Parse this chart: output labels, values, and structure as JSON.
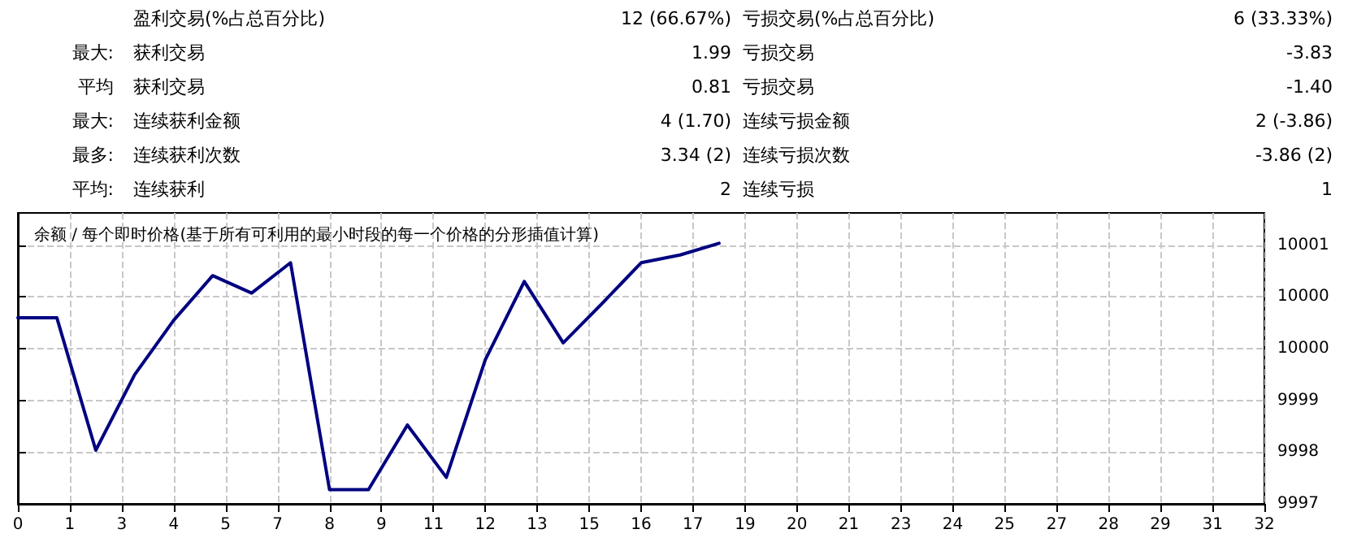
{
  "chart_data": [
    {
      "type": "other",
      "annotations": [
        null,
        "盈利交易(%占总百分比)",
        "12 (66.67%)",
        "亏损交易(%占总百分比)",
        "6 (33.33%)",
        "最大:",
        "获利交易",
        "1.99",
        "亏损交易",
        "-3.83",
        "平均",
        "获利交易",
        "0.81",
        "亏损交易",
        "-1.40",
        "最大:",
        "连续获利金额",
        "4 (1.70)",
        "连续亏损金额",
        "2 (-3.86)",
        "最多:",
        "连续获利次数",
        "3.34 (2)",
        "连续亏损次数",
        "-3.86 (2)",
        "平均:",
        "连续获利",
        "2",
        "连续亏损",
        "1"
      ]
    },
    {
      "type": "line",
      "title": "余额 / 每个即时价格(基于所有可利用的最小时段的每一个价格的分形插值计算)",
      "x": [
        0,
        1,
        2,
        3,
        4,
        5,
        6,
        7,
        8,
        9,
        10,
        11,
        12,
        13,
        14,
        15,
        16,
        17,
        18
      ],
      "series": [
        {
          "color": "#000080",
          "values": [
            10000.08,
            10000.08,
            9998.03,
            9999.2,
            10000.04,
            10000.73,
            10000.46,
            10000.93,
            9997.42,
            9997.42,
            9998.42,
            9997.61,
            9999.43,
            10000.64,
            9999.69,
            10000.3,
            10000.93,
            10001.05,
            10001.23
          ]
        }
      ],
      "xlim": [
        0,
        32
      ],
      "xticks": [
        0,
        {
          "value": 1.33,
          "label": "1"
        },
        {
          "value": 2.67,
          "label": "3"
        },
        4,
        {
          "value": 5.33,
          "label": "5"
        },
        {
          "value": 6.67,
          "label": "7"
        },
        8,
        {
          "value": 9.33,
          "label": "9"
        },
        {
          "value": 10.67,
          "label": "11"
        },
        12,
        {
          "value": 13.33,
          "label": "13"
        },
        {
          "value": 14.67,
          "label": "15"
        },
        16,
        {
          "value": 17.33,
          "label": "17"
        },
        {
          "value": 18.67,
          "label": "19"
        },
        20,
        {
          "value": 21.33,
          "label": "21"
        },
        {
          "value": 22.67,
          "label": "23"
        },
        24,
        {
          "value": 25.33,
          "label": "25"
        },
        {
          "value": 26.67,
          "label": "27"
        },
        28,
        {
          "value": 29.33,
          "label": "29"
        },
        {
          "value": 30.67,
          "label": "31"
        },
        32
      ],
      "ylim": [
        9997.2,
        10001.7
      ],
      "yticks": [
        {
          "value": 9997.2,
          "label": "9997"
        },
        9998,
        {
          "value": 9998.8,
          "label": "9999"
        },
        {
          "value": 9999.6,
          "label": "10000"
        },
        {
          "value": 10000.4,
          "label": "10000"
        },
        {
          "value": 10001.2,
          "label": "10001"
        }
      ],
      "grid": true,
      "line_style": "solid"
    }
  ]
}
